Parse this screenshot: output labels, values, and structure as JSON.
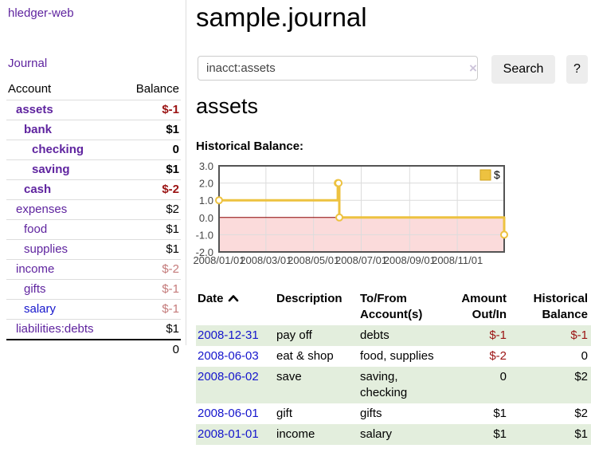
{
  "app": {
    "brand": "hledger-web",
    "nav": {
      "journal": "Journal"
    }
  },
  "sidebar": {
    "columns": {
      "account": "Account",
      "balance": "Balance"
    },
    "accounts": [
      {
        "name": "assets",
        "depth": 1,
        "balance": "$-1",
        "bold": true,
        "balance_style": "negative"
      },
      {
        "name": "bank",
        "depth": 2,
        "balance": "$1",
        "bold": true,
        "balance_style": "normal"
      },
      {
        "name": "checking",
        "depth": 3,
        "balance": "0",
        "bold": true,
        "balance_style": "normal"
      },
      {
        "name": "saving",
        "depth": 3,
        "balance": "$1",
        "bold": true,
        "balance_style": "normal"
      },
      {
        "name": "cash",
        "depth": 2,
        "balance": "$-2",
        "bold": true,
        "balance_style": "negative"
      },
      {
        "name": "expenses",
        "depth": 1,
        "balance": "$2",
        "bold": false,
        "balance_style": "normal"
      },
      {
        "name": "food",
        "depth": 2,
        "balance": "$1",
        "bold": false,
        "balance_style": "normal"
      },
      {
        "name": "supplies",
        "depth": 2,
        "balance": "$1",
        "bold": false,
        "balance_style": "normal"
      },
      {
        "name": "income",
        "depth": 1,
        "balance": "$-2",
        "bold": false,
        "balance_style": "negative-muted"
      },
      {
        "name": "gifts",
        "depth": 2,
        "balance": "$-1",
        "bold": false,
        "balance_style": "negative-muted"
      },
      {
        "name": "salary",
        "depth": 2,
        "balance": "$-1",
        "bold": false,
        "balance_style": "negative-muted",
        "link_color": "blue"
      },
      {
        "name": "liabilities:debts",
        "depth": 1,
        "balance": "$1",
        "bold": false,
        "balance_style": "normal"
      }
    ],
    "total": "0"
  },
  "main": {
    "title": "sample.journal",
    "search": {
      "value": "inacct:assets",
      "clear_icon": "×",
      "search_button": "Search",
      "help_button": "?"
    },
    "heading": "assets",
    "chart_title": "Historical Balance:"
  },
  "chart_data": {
    "type": "line",
    "line_style": "step-post",
    "title": "Historical Balance",
    "xlim": [
      "2008-01-01",
      "2008-12-31"
    ],
    "ylim": [
      -2.0,
      3.0
    ],
    "x_ticks": [
      "2008/01/01",
      "2008/03/01",
      "2008/05/01",
      "2008/07/01",
      "2008/09/01",
      "2008/11/01"
    ],
    "y_ticks": [
      3.0,
      2.0,
      1.0,
      0.0,
      -1.0,
      -2.0
    ],
    "grid": true,
    "legend_position": "top-right",
    "legend": [
      {
        "label": "$",
        "color": "#edc240"
      }
    ],
    "series": [
      {
        "name": "$",
        "color": "#edc240",
        "points": [
          {
            "date": "2008-01-01",
            "value": 1
          },
          {
            "date": "2008-06-01",
            "value": 2
          },
          {
            "date": "2008-06-02",
            "value": 2
          },
          {
            "date": "2008-06-03",
            "value": 0
          },
          {
            "date": "2008-12-31",
            "value": -1
          }
        ]
      }
    ],
    "negative_region_color": "#fbdbdb",
    "zero_line_color": "#8b0000",
    "border_color": "#545454",
    "grid_color": "#dcdcdc",
    "tick_label_color": "#454545"
  },
  "register": {
    "columns": [
      {
        "label": "Date",
        "sort_icon": "chevron-up",
        "align": "left"
      },
      {
        "label": "Description",
        "align": "left"
      },
      {
        "label": "To/From Account(s)",
        "align": "left"
      },
      {
        "label": "Amount Out/In",
        "align": "right"
      },
      {
        "label": "Historical Balance",
        "align": "right"
      }
    ],
    "rows": [
      {
        "date": "2008-12-31",
        "description": "pay off",
        "accounts": "debts",
        "amount": "$-1",
        "amount_negative": true,
        "balance": "$-1",
        "balance_negative": true,
        "shaded": true
      },
      {
        "date": "2008-06-03",
        "description": "eat & shop",
        "accounts": "food, supplies",
        "amount": "$-2",
        "amount_negative": true,
        "balance": "0",
        "balance_negative": false,
        "shaded": false
      },
      {
        "date": "2008-06-02",
        "description": "save",
        "accounts": "saving, checking",
        "amount": "0",
        "amount_negative": false,
        "balance": "$2",
        "balance_negative": false,
        "shaded": true
      },
      {
        "date": "2008-06-01",
        "description": "gift",
        "accounts": "gifts",
        "amount": "$1",
        "amount_negative": false,
        "balance": "$2",
        "balance_negative": false,
        "shaded": false
      },
      {
        "date": "2008-01-01",
        "description": "income",
        "accounts": "salary",
        "amount": "$1",
        "amount_negative": false,
        "balance": "$1",
        "balance_negative": false,
        "shaded": true
      }
    ]
  },
  "colors": {
    "link_purple": "#5f249f",
    "link_blue": "#1515cc",
    "negative": "#9b1313",
    "negative_muted": "#c47a7a",
    "row_shade_green": "#e3eedd"
  }
}
